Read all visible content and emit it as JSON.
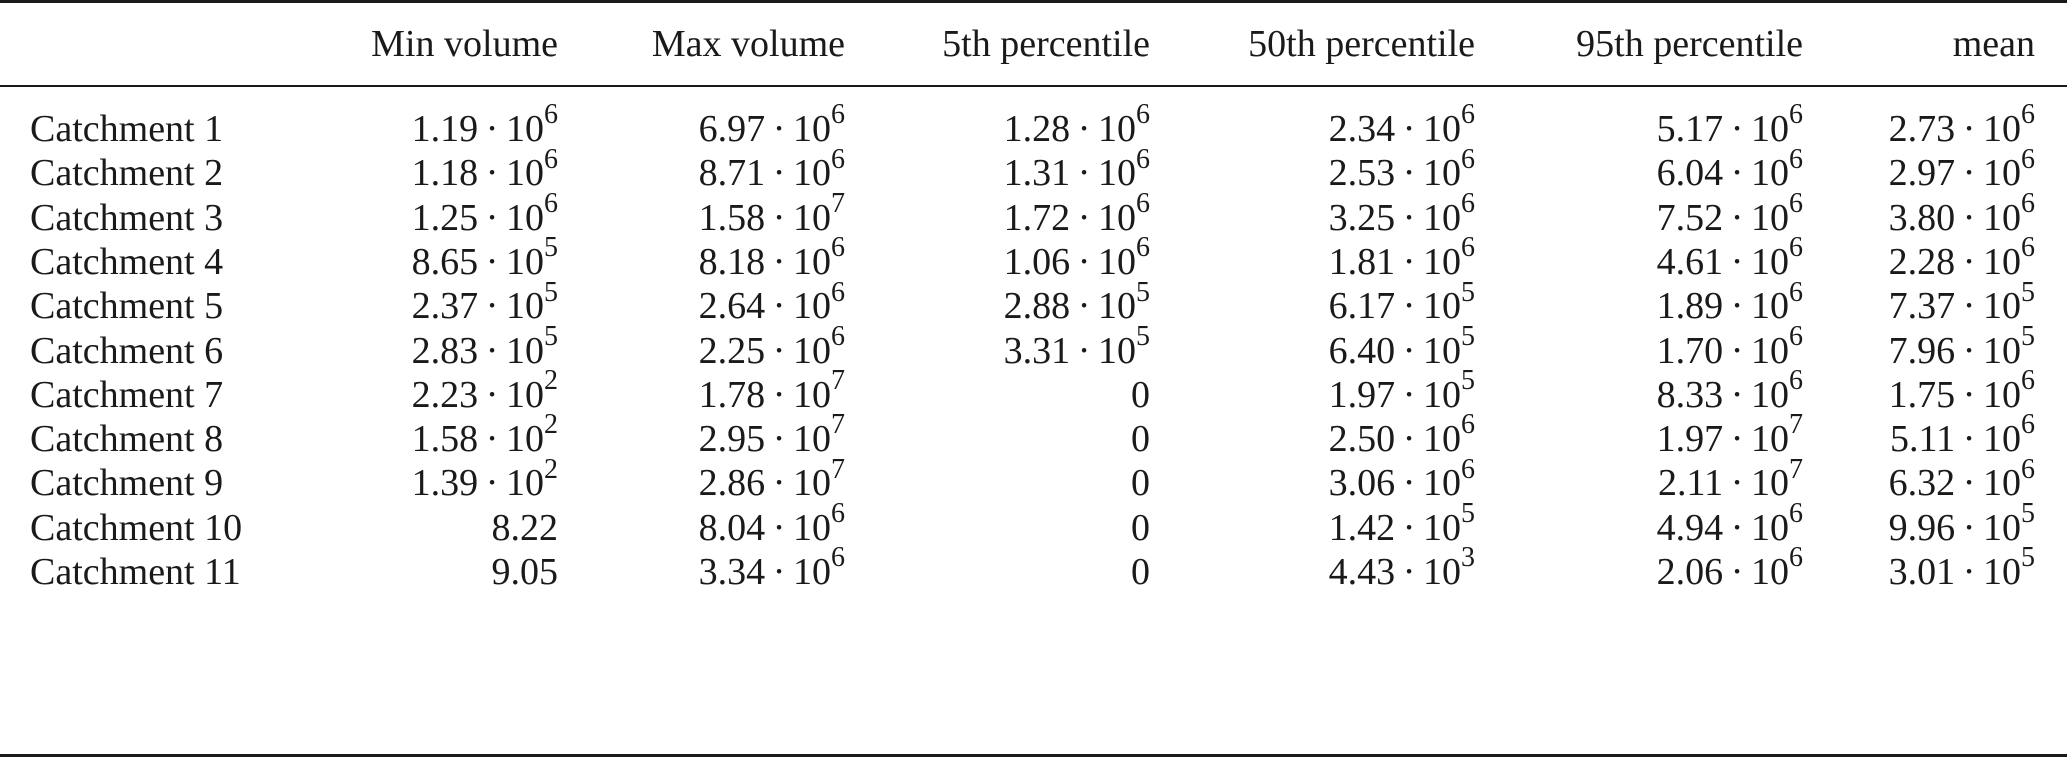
{
  "table": {
    "columns": [
      "",
      "Min volume",
      "Max volume",
      "5th percentile",
      "50th percentile",
      "95th percentile",
      "mean"
    ],
    "rows": [
      {
        "name": "Catchment 1",
        "values": [
          {
            "m": "1.19",
            "e": "6"
          },
          {
            "m": "6.97",
            "e": "6"
          },
          {
            "m": "1.28",
            "e": "6"
          },
          {
            "m": "2.34",
            "e": "6"
          },
          {
            "m": "5.17",
            "e": "6"
          },
          {
            "m": "2.73",
            "e": "6"
          }
        ]
      },
      {
        "name": "Catchment 2",
        "values": [
          {
            "m": "1.18",
            "e": "6"
          },
          {
            "m": "8.71",
            "e": "6"
          },
          {
            "m": "1.31",
            "e": "6"
          },
          {
            "m": "2.53",
            "e": "6"
          },
          {
            "m": "6.04",
            "e": "6"
          },
          {
            "m": "2.97",
            "e": "6"
          }
        ]
      },
      {
        "name": "Catchment 3",
        "values": [
          {
            "m": "1.25",
            "e": "6"
          },
          {
            "m": "1.58",
            "e": "7"
          },
          {
            "m": "1.72",
            "e": "6"
          },
          {
            "m": "3.25",
            "e": "6"
          },
          {
            "m": "7.52",
            "e": "6"
          },
          {
            "m": "3.80",
            "e": "6"
          }
        ]
      },
      {
        "name": "Catchment 4",
        "values": [
          {
            "m": "8.65",
            "e": "5"
          },
          {
            "m": "8.18",
            "e": "6"
          },
          {
            "m": "1.06",
            "e": "6"
          },
          {
            "m": "1.81",
            "e": "6"
          },
          {
            "m": "4.61",
            "e": "6"
          },
          {
            "m": "2.28",
            "e": "6"
          }
        ]
      },
      {
        "name": "Catchment 5",
        "values": [
          {
            "m": "2.37",
            "e": "5"
          },
          {
            "m": "2.64",
            "e": "6"
          },
          {
            "m": "2.88",
            "e": "5"
          },
          {
            "m": "6.17",
            "e": "5"
          },
          {
            "m": "1.89",
            "e": "6"
          },
          {
            "m": "7.37",
            "e": "5"
          }
        ]
      },
      {
        "name": "Catchment 6",
        "values": [
          {
            "m": "2.83",
            "e": "5"
          },
          {
            "m": "2.25",
            "e": "6"
          },
          {
            "m": "3.31",
            "e": "5"
          },
          {
            "m": "6.40",
            "e": "5"
          },
          {
            "m": "1.70",
            "e": "6"
          },
          {
            "m": "7.96",
            "e": "5"
          }
        ]
      },
      {
        "name": "Catchment 7",
        "values": [
          {
            "m": "2.23",
            "e": "2"
          },
          {
            "m": "1.78",
            "e": "7"
          },
          {
            "m": "0",
            "e": ""
          },
          {
            "m": "1.97",
            "e": "5"
          },
          {
            "m": "8.33",
            "e": "6"
          },
          {
            "m": "1.75",
            "e": "6"
          }
        ]
      },
      {
        "name": "Catchment 8",
        "values": [
          {
            "m": "1.58",
            "e": "2"
          },
          {
            "m": "2.95",
            "e": "7"
          },
          {
            "m": "0",
            "e": ""
          },
          {
            "m": "2.50",
            "e": "6"
          },
          {
            "m": "1.97",
            "e": "7"
          },
          {
            "m": "5.11",
            "e": "6"
          }
        ]
      },
      {
        "name": "Catchment 9",
        "values": [
          {
            "m": "1.39",
            "e": "2"
          },
          {
            "m": "2.86",
            "e": "7"
          },
          {
            "m": "0",
            "e": ""
          },
          {
            "m": "3.06",
            "e": "6"
          },
          {
            "m": "2.11",
            "e": "7"
          },
          {
            "m": "6.32",
            "e": "6"
          }
        ]
      },
      {
        "name": "Catchment 10",
        "values": [
          {
            "m": "8.22",
            "e": ""
          },
          {
            "m": "8.04",
            "e": "6"
          },
          {
            "m": "0",
            "e": ""
          },
          {
            "m": "1.42",
            "e": "5"
          },
          {
            "m": "4.94",
            "e": "6"
          },
          {
            "m": "9.96",
            "e": "5"
          }
        ]
      },
      {
        "name": "Catchment 11",
        "values": [
          {
            "m": "9.05",
            "e": ""
          },
          {
            "m": "3.34",
            "e": "6"
          },
          {
            "m": "0",
            "e": ""
          },
          {
            "m": "4.43",
            "e": "3"
          },
          {
            "m": "2.06",
            "e": "6"
          },
          {
            "m": "3.01",
            "e": "5"
          }
        ]
      }
    ]
  }
}
